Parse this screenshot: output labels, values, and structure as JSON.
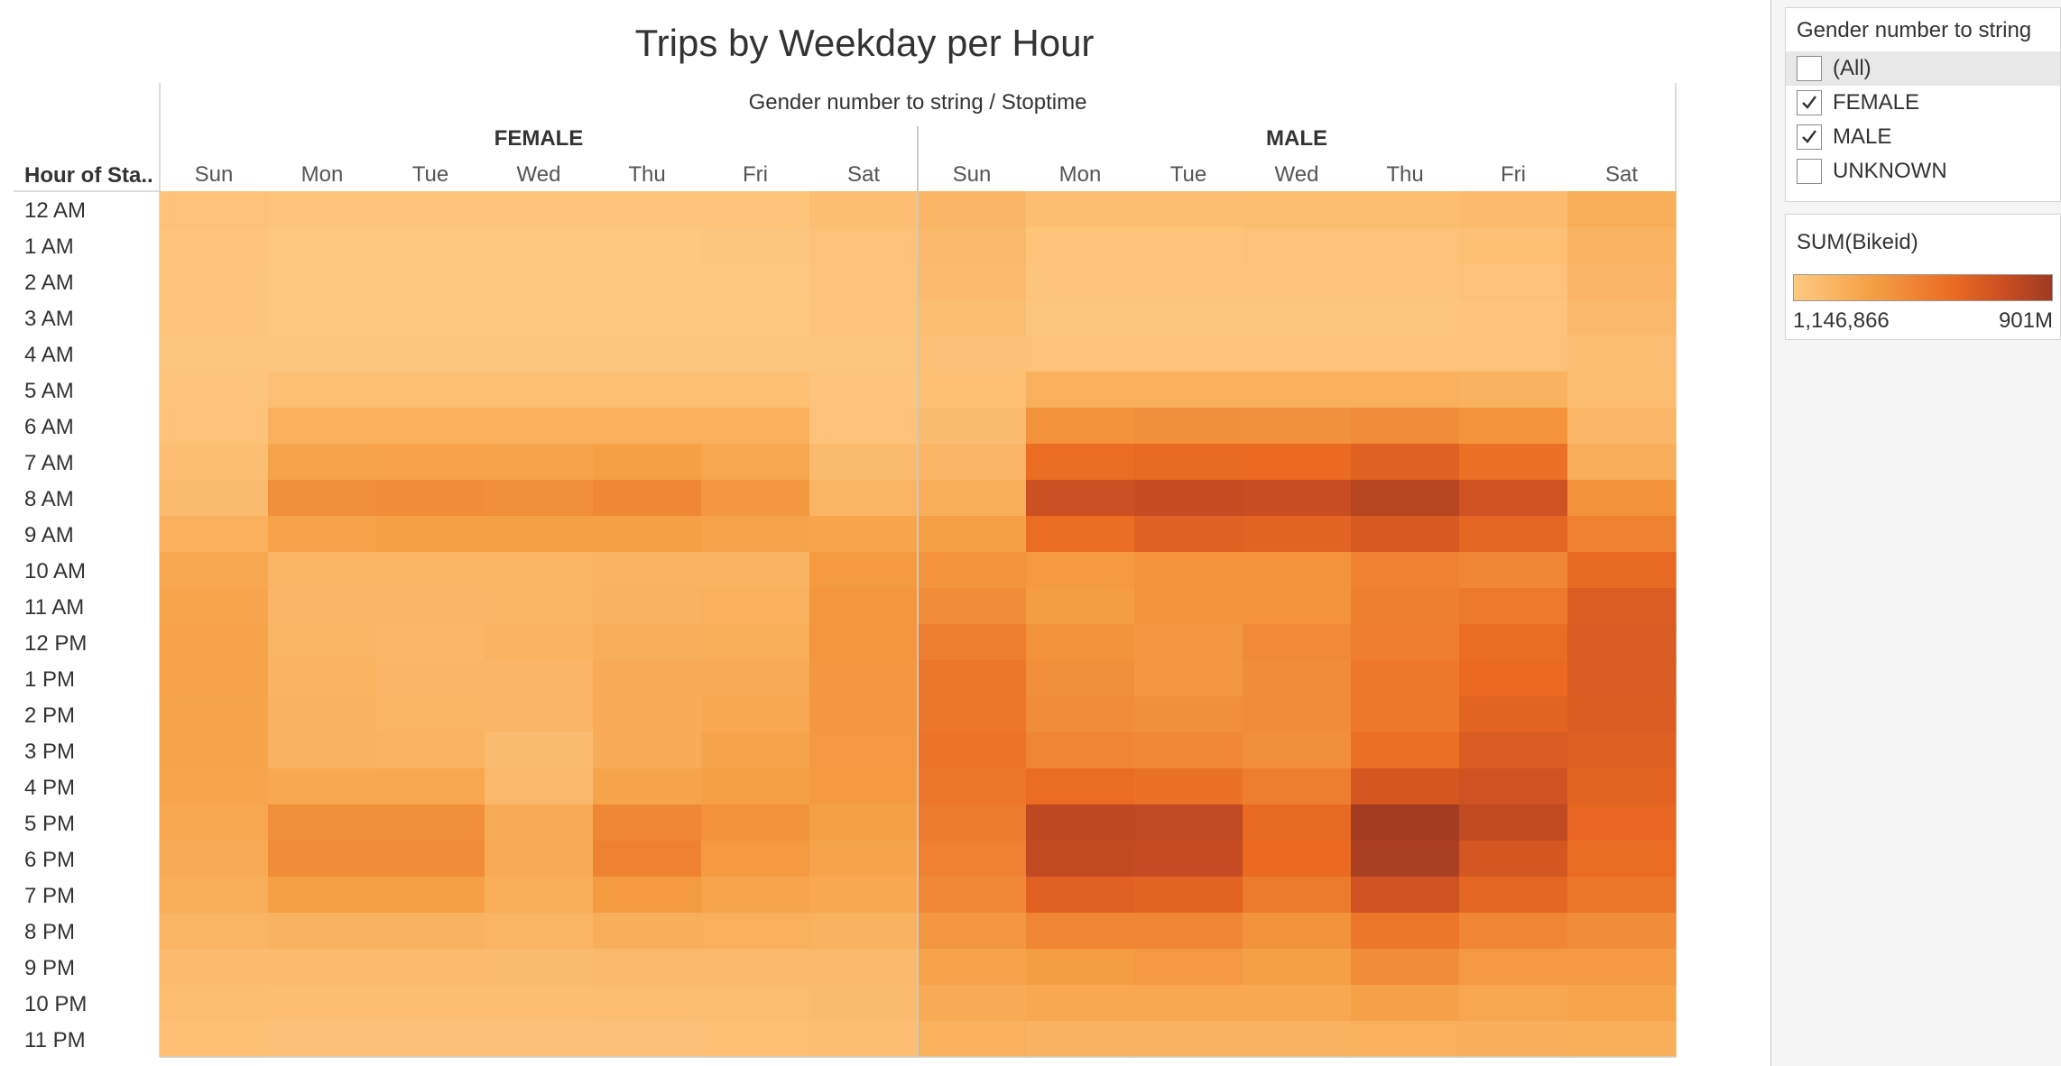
{
  "chart_data": {
    "type": "heatmap",
    "title": "Trips by Weekday per Hour",
    "column_header": "Gender number to string  /  Stoptime",
    "row_header": "Hour of Sta..",
    "genders": [
      "FEMALE",
      "MALE"
    ],
    "days": [
      "Sun",
      "Mon",
      "Tue",
      "Wed",
      "Thu",
      "Fri",
      "Sat"
    ],
    "hours": [
      "12 AM",
      "1 AM",
      "2 AM",
      "3 AM",
      "4 AM",
      "5 AM",
      "6 AM",
      "7 AM",
      "8 AM",
      "9 AM",
      "10 AM",
      "11 AM",
      "12 PM",
      "1 PM",
      "2 PM",
      "3 PM",
      "4 PM",
      "5 PM",
      "6 PM",
      "7 PM",
      "8 PM",
      "9 PM",
      "10 PM",
      "11 PM"
    ],
    "measure": "SUM(Bikeid)",
    "color_range": [
      1146866,
      901000000
    ],
    "color_scale": [
      "#fec982",
      "#f5a045",
      "#ea6a22",
      "#c84d22",
      "#a03a22"
    ],
    "values": {
      "FEMALE": [
        [
          0.05,
          0.03,
          0.03,
          0.03,
          0.03,
          0.04,
          0.08
        ],
        [
          0.04,
          0.01,
          0.01,
          0.01,
          0.01,
          0.02,
          0.05
        ],
        [
          0.03,
          0.01,
          0.01,
          0.01,
          0.01,
          0.01,
          0.04
        ],
        [
          0.03,
          0.01,
          0.01,
          0.01,
          0.01,
          0.01,
          0.03
        ],
        [
          0.02,
          0.02,
          0.02,
          0.02,
          0.02,
          0.02,
          0.02
        ],
        [
          0.03,
          0.07,
          0.07,
          0.07,
          0.07,
          0.07,
          0.03
        ],
        [
          0.05,
          0.18,
          0.18,
          0.18,
          0.18,
          0.18,
          0.05
        ],
        [
          0.08,
          0.27,
          0.28,
          0.27,
          0.3,
          0.25,
          0.1
        ],
        [
          0.1,
          0.4,
          0.42,
          0.4,
          0.45,
          0.35,
          0.15
        ],
        [
          0.18,
          0.28,
          0.3,
          0.3,
          0.3,
          0.27,
          0.26
        ],
        [
          0.24,
          0.15,
          0.15,
          0.15,
          0.16,
          0.16,
          0.33
        ],
        [
          0.26,
          0.14,
          0.14,
          0.15,
          0.17,
          0.18,
          0.36
        ],
        [
          0.28,
          0.15,
          0.13,
          0.16,
          0.19,
          0.2,
          0.36
        ],
        [
          0.28,
          0.16,
          0.14,
          0.14,
          0.21,
          0.22,
          0.35
        ],
        [
          0.27,
          0.17,
          0.15,
          0.14,
          0.21,
          0.24,
          0.35
        ],
        [
          0.27,
          0.17,
          0.16,
          0.1,
          0.21,
          0.27,
          0.34
        ],
        [
          0.26,
          0.24,
          0.25,
          0.12,
          0.27,
          0.3,
          0.33
        ],
        [
          0.25,
          0.4,
          0.4,
          0.22,
          0.45,
          0.38,
          0.3
        ],
        [
          0.22,
          0.42,
          0.42,
          0.22,
          0.48,
          0.33,
          0.27
        ],
        [
          0.2,
          0.3,
          0.3,
          0.2,
          0.33,
          0.26,
          0.24
        ],
        [
          0.15,
          0.17,
          0.17,
          0.15,
          0.19,
          0.18,
          0.17
        ],
        [
          0.11,
          0.11,
          0.11,
          0.1,
          0.12,
          0.12,
          0.12
        ],
        [
          0.09,
          0.08,
          0.08,
          0.08,
          0.09,
          0.09,
          0.1
        ],
        [
          0.07,
          0.06,
          0.06,
          0.06,
          0.06,
          0.07,
          0.08
        ]
      ],
      "MALE": [
        [
          0.14,
          0.08,
          0.08,
          0.09,
          0.09,
          0.11,
          0.2
        ],
        [
          0.12,
          0.04,
          0.04,
          0.05,
          0.05,
          0.07,
          0.16
        ],
        [
          0.11,
          0.03,
          0.03,
          0.03,
          0.03,
          0.05,
          0.14
        ],
        [
          0.09,
          0.02,
          0.02,
          0.02,
          0.02,
          0.04,
          0.12
        ],
        [
          0.06,
          0.05,
          0.05,
          0.05,
          0.05,
          0.05,
          0.08
        ],
        [
          0.07,
          0.18,
          0.18,
          0.18,
          0.18,
          0.17,
          0.09
        ],
        [
          0.1,
          0.38,
          0.4,
          0.39,
          0.42,
          0.37,
          0.13
        ],
        [
          0.14,
          0.6,
          0.63,
          0.62,
          0.68,
          0.58,
          0.19
        ],
        [
          0.2,
          0.8,
          0.84,
          0.82,
          0.9,
          0.78,
          0.38
        ],
        [
          0.3,
          0.6,
          0.68,
          0.66,
          0.73,
          0.65,
          0.48
        ],
        [
          0.37,
          0.33,
          0.37,
          0.37,
          0.47,
          0.45,
          0.63
        ],
        [
          0.42,
          0.32,
          0.37,
          0.37,
          0.49,
          0.53,
          0.7
        ],
        [
          0.5,
          0.38,
          0.35,
          0.43,
          0.51,
          0.6,
          0.72
        ],
        [
          0.55,
          0.4,
          0.35,
          0.42,
          0.54,
          0.62,
          0.72
        ],
        [
          0.55,
          0.42,
          0.4,
          0.41,
          0.54,
          0.66,
          0.71
        ],
        [
          0.56,
          0.46,
          0.44,
          0.4,
          0.59,
          0.72,
          0.69
        ],
        [
          0.55,
          0.6,
          0.58,
          0.5,
          0.75,
          0.78,
          0.67
        ],
        [
          0.52,
          0.87,
          0.86,
          0.63,
          0.98,
          0.85,
          0.64
        ],
        [
          0.48,
          0.85,
          0.84,
          0.62,
          0.95,
          0.75,
          0.6
        ],
        [
          0.44,
          0.68,
          0.66,
          0.52,
          0.78,
          0.65,
          0.55
        ],
        [
          0.35,
          0.46,
          0.46,
          0.38,
          0.55,
          0.46,
          0.42
        ],
        [
          0.28,
          0.32,
          0.34,
          0.3,
          0.42,
          0.34,
          0.34
        ],
        [
          0.22,
          0.24,
          0.24,
          0.24,
          0.29,
          0.25,
          0.26
        ],
        [
          0.18,
          0.17,
          0.17,
          0.17,
          0.18,
          0.19,
          0.2
        ]
      ]
    }
  },
  "filter": {
    "title": "Gender number to string",
    "items": [
      {
        "label": "(All)",
        "checked": false
      },
      {
        "label": "FEMALE",
        "checked": true
      },
      {
        "label": "MALE",
        "checked": true
      },
      {
        "label": "UNKNOWN",
        "checked": false
      }
    ]
  },
  "legend": {
    "title": "SUM(Bikeid)",
    "min_label": "1,146,866",
    "max_label": "901M"
  }
}
